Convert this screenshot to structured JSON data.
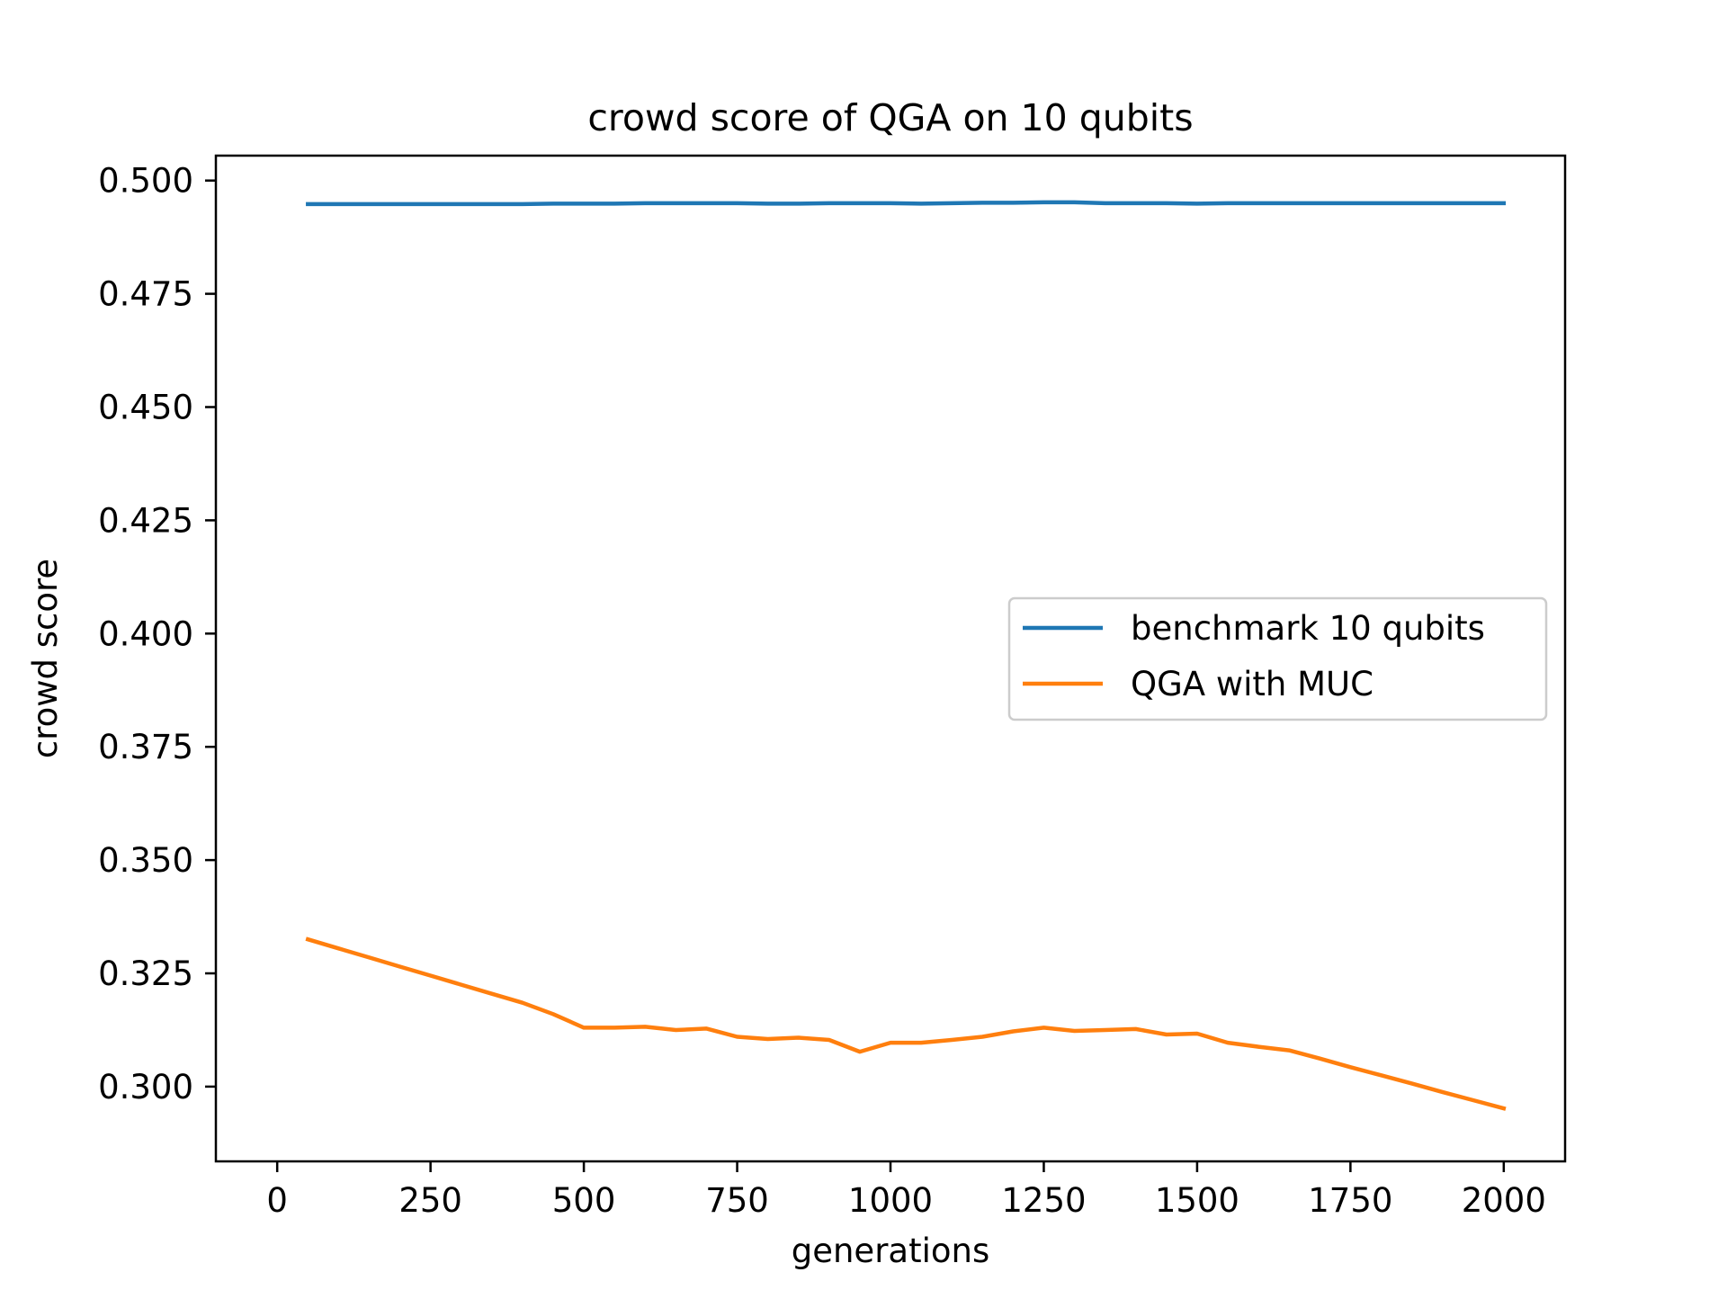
{
  "chart_data": {
    "type": "line",
    "title": "crowd score of QGA on 10 qubits",
    "xlabel": "generations",
    "ylabel": "crowd score",
    "xlim": [
      -100,
      2100
    ],
    "ylim": [
      0.2835,
      0.5055
    ],
    "xticks": [
      0,
      250,
      500,
      750,
      1000,
      1250,
      1500,
      1750,
      2000
    ],
    "xtick_labels": [
      "0",
      "250",
      "500",
      "750",
      "1000",
      "1250",
      "1500",
      "1750",
      "2000"
    ],
    "yticks": [
      0.3,
      0.325,
      0.35,
      0.375,
      0.4,
      0.425,
      0.45,
      0.475,
      0.5
    ],
    "ytick_labels": [
      "0.300",
      "0.325",
      "0.350",
      "0.375",
      "0.400",
      "0.425",
      "0.450",
      "0.475",
      "0.500"
    ],
    "grid": false,
    "legend_position": "center-right",
    "x": [
      50,
      100,
      150,
      200,
      250,
      300,
      350,
      400,
      450,
      500,
      550,
      600,
      650,
      700,
      750,
      800,
      850,
      900,
      950,
      1000,
      1050,
      1100,
      1150,
      1200,
      1250,
      1300,
      1350,
      1400,
      1450,
      1500,
      1550,
      1600,
      1650,
      1700,
      1750,
      1800,
      1850,
      1900,
      1950,
      2000
    ],
    "series": [
      {
        "name": "benchmark 10 qubits",
        "color": "#1f77b4",
        "values": [
          0.4948,
          0.4948,
          0.4948,
          0.4948,
          0.4948,
          0.4948,
          0.4948,
          0.4948,
          0.4949,
          0.4949,
          0.4949,
          0.495,
          0.495,
          0.495,
          0.495,
          0.4949,
          0.4949,
          0.495,
          0.495,
          0.495,
          0.4949,
          0.495,
          0.4951,
          0.4951,
          0.4952,
          0.4952,
          0.495,
          0.495,
          0.495,
          0.4949,
          0.495,
          0.495,
          0.495,
          0.495,
          0.495,
          0.495,
          0.495,
          0.495,
          0.495,
          0.495
        ]
      },
      {
        "name": "QGA with MUC",
        "color": "#ff7f0e",
        "values": [
          0.3325,
          0.3305,
          0.3285,
          0.3265,
          0.3245,
          0.3225,
          0.3205,
          0.3185,
          0.316,
          0.313,
          0.313,
          0.3132,
          0.3125,
          0.3128,
          0.311,
          0.3105,
          0.3108,
          0.3103,
          0.3077,
          0.3097,
          0.3097,
          0.3103,
          0.311,
          0.3122,
          0.313,
          0.3123,
          0.3125,
          0.3127,
          0.3115,
          0.3117,
          0.3097,
          0.3088,
          0.308,
          0.3062,
          0.3043,
          0.3025,
          0.3007,
          0.2988,
          0.297,
          0.2952
        ]
      }
    ]
  }
}
